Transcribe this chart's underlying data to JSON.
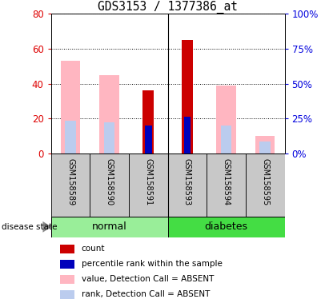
{
  "title": "GDS3153 / 1377386_at",
  "samples": [
    "GSM158589",
    "GSM158590",
    "GSM158591",
    "GSM158593",
    "GSM158594",
    "GSM158595"
  ],
  "left_ylim": [
    0,
    80
  ],
  "right_ylim": [
    0,
    100
  ],
  "left_yticks": [
    0,
    20,
    40,
    60,
    80
  ],
  "right_yticks": [
    0,
    25,
    50,
    75,
    100
  ],
  "left_ylabel_color": "#DD0000",
  "right_ylabel_color": "#0000DD",
  "count_values": [
    0,
    0,
    36,
    65,
    0,
    0
  ],
  "percentile_values": [
    0,
    0,
    16,
    21,
    0,
    0
  ],
  "value_absent": [
    53,
    45,
    0,
    0,
    39,
    10
  ],
  "rank_absent": [
    19,
    18,
    0,
    0,
    16,
    7
  ],
  "count_color": "#CC0000",
  "percentile_color": "#0000BB",
  "value_absent_color": "#FFB6C1",
  "rank_absent_color": "#BBCCEE",
  "grid_color": "black",
  "normal_color": "#99EE99",
  "diabetes_color": "#44DD44",
  "label_bg": "#C8C8C8",
  "legend_items": [
    [
      "#CC0000",
      "count"
    ],
    [
      "#0000BB",
      "percentile rank within the sample"
    ],
    [
      "#FFB6C1",
      "value, Detection Call = ABSENT"
    ],
    [
      "#BBCCEE",
      "rank, Detection Call = ABSENT"
    ]
  ]
}
